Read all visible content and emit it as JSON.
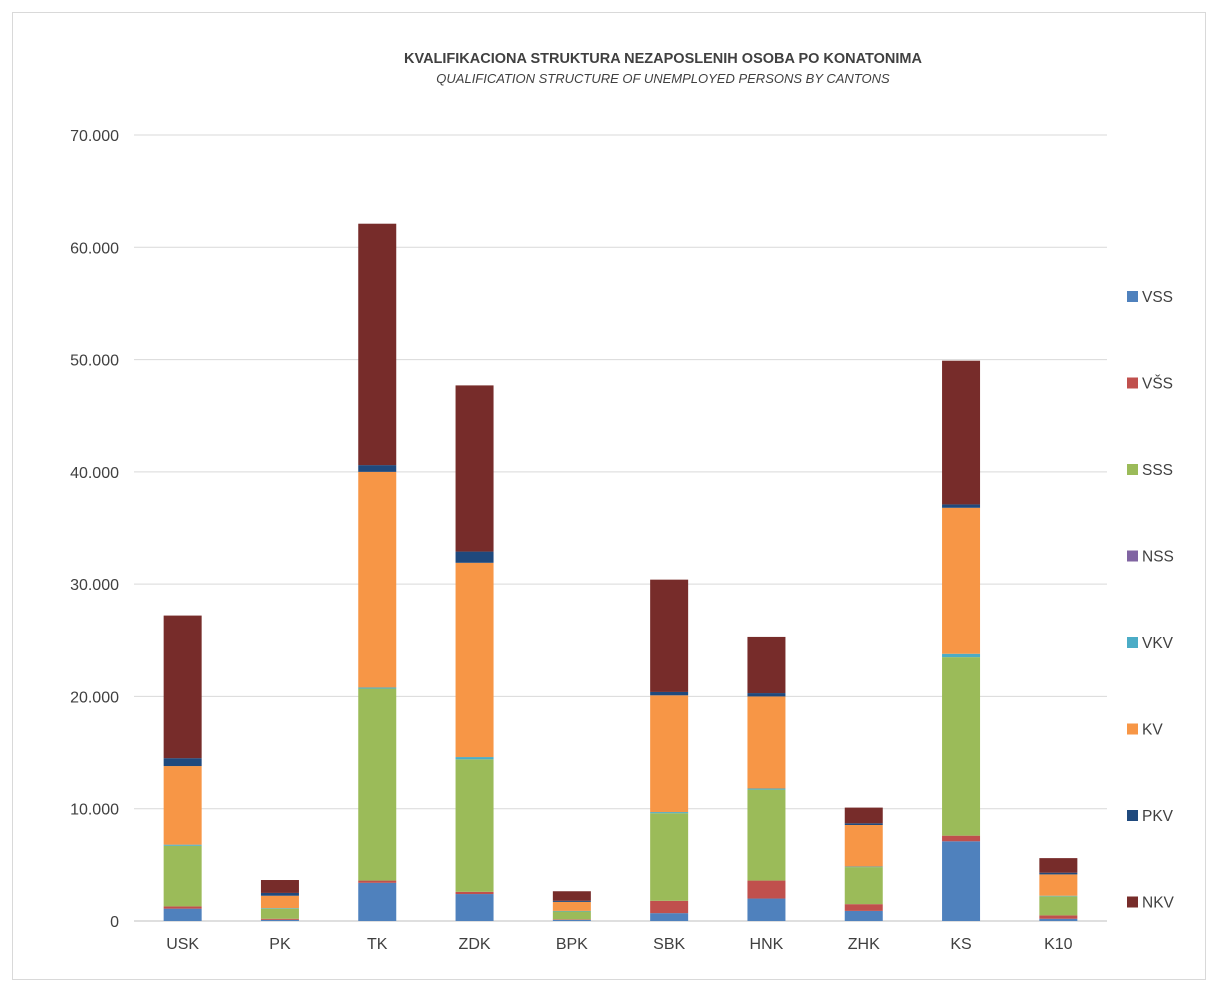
{
  "chart_data": {
    "type": "bar",
    "stacked": true,
    "title": "KVALIFIKACIONA STRUKTURA NEZAPOSLENIH OSOBA PO KONATONIMA",
    "subtitle": "QUALIFICATION STRUCTURE OF UNEMPLOYED PERSONS BY CANTONS",
    "categories": [
      "USK",
      "PK",
      "TK",
      "ZDK",
      "BPK",
      "SBK",
      "HNK",
      "ZHK",
      "KS",
      "K10"
    ],
    "ylim": [
      0,
      70000
    ],
    "yticks": [
      0,
      10000,
      20000,
      30000,
      40000,
      50000,
      60000,
      70000
    ],
    "ytick_labels": [
      "0",
      "10.000",
      "20.000",
      "30.000",
      "40.000",
      "50.000",
      "60.000",
      "70.000"
    ],
    "grid": true,
    "legend_position": "right",
    "series": [
      {
        "name": "VSS",
        "color": "#4f81bd",
        "values": [
          1100,
          100,
          3400,
          2400,
          100,
          700,
          2000,
          900,
          7100,
          200
        ]
      },
      {
        "name": "VŠS",
        "color": "#c0504d",
        "values": [
          200,
          100,
          200,
          200,
          50,
          1100,
          1600,
          600,
          500,
          300
        ]
      },
      {
        "name": "SSS",
        "color": "#9bbb59",
        "values": [
          5400,
          900,
          17100,
          11800,
          700,
          7800,
          8100,
          3300,
          15900,
          1700
        ]
      },
      {
        "name": "NSS",
        "color": "#8064a2",
        "values": [
          0,
          0,
          0,
          0,
          0,
          0,
          0,
          0,
          0,
          0
        ]
      },
      {
        "name": "VKV",
        "color": "#4bacc6",
        "values": [
          100,
          50,
          100,
          200,
          50,
          100,
          100,
          50,
          300,
          50
        ]
      },
      {
        "name": "KV",
        "color": "#f79646",
        "values": [
          7000,
          1100,
          19200,
          17300,
          800,
          10400,
          8200,
          3700,
          13000,
          1900
        ]
      },
      {
        "name": "PKV",
        "color": "#1f497d",
        "values": [
          700,
          250,
          600,
          1000,
          100,
          300,
          300,
          150,
          300,
          150
        ]
      },
      {
        "name": "NKV",
        "color": "#772c2a",
        "values": [
          12700,
          1150,
          21500,
          14800,
          850,
          10000,
          5000,
          1400,
          12800,
          1300
        ]
      }
    ]
  }
}
